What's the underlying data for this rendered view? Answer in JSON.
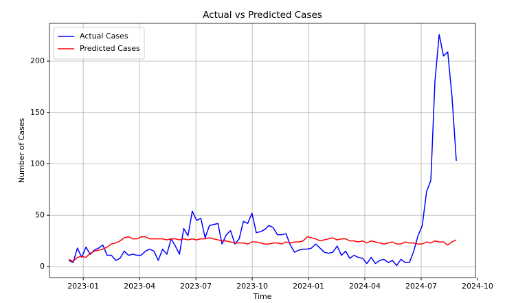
{
  "chart_data": {
    "type": "line",
    "title": "Actual vs Predicted Cases",
    "xlabel": "Time",
    "ylabel": "Number of Cases",
    "x": [
      2022.936,
      2022.955,
      2022.974,
      2022.993,
      2023.012,
      2023.031,
      2023.049,
      2023.068,
      2023.087,
      2023.106,
      2023.125,
      2023.144,
      2023.163,
      2023.182,
      2023.201,
      2023.22,
      2023.238,
      2023.257,
      2023.276,
      2023.295,
      2023.314,
      2023.333,
      2023.352,
      2023.371,
      2023.39,
      2023.409,
      2023.427,
      2023.446,
      2023.465,
      2023.484,
      2023.503,
      2023.522,
      2023.541,
      2023.56,
      2023.579,
      2023.598,
      2023.616,
      2023.635,
      2023.654,
      2023.673,
      2023.692,
      2023.711,
      2023.73,
      2023.749,
      2023.768,
      2023.787,
      2023.805,
      2023.824,
      2023.843,
      2023.862,
      2023.881,
      2023.9,
      2023.919,
      2023.938,
      2023.957,
      2023.976,
      2023.994,
      2024.013,
      2024.032,
      2024.051,
      2024.07,
      2024.089,
      2024.108,
      2024.127,
      2024.146,
      2024.165,
      2024.183,
      2024.202,
      2024.221,
      2024.24,
      2024.259,
      2024.278,
      2024.297,
      2024.316,
      2024.335,
      2024.354,
      2024.372,
      2024.391,
      2024.41,
      2024.429,
      2024.448,
      2024.467,
      2024.486,
      2024.505,
      2024.524,
      2024.543,
      2024.561,
      2024.58,
      2024.599,
      2024.618,
      2024.637,
      2024.656
    ],
    "series": [
      {
        "name": "Actual Cases",
        "color": "#0000ff",
        "values": [
          6,
          4,
          18,
          9,
          19,
          12,
          16,
          18,
          21,
          11,
          11,
          6,
          8,
          15,
          11,
          12,
          11,
          11,
          15,
          17,
          15,
          6,
          17,
          12,
          27,
          20,
          12,
          37,
          30,
          54,
          45,
          47,
          28,
          40,
          41,
          42,
          22,
          31,
          35,
          22,
          27,
          44,
          42,
          52,
          33,
          34,
          36,
          40,
          38,
          31,
          31,
          32,
          21,
          14,
          16,
          17,
          17,
          18,
          22,
          18,
          14,
          13,
          14,
          20,
          11,
          15,
          8,
          11,
          9,
          8,
          3,
          9,
          3,
          6,
          7,
          4,
          6,
          1,
          7,
          4,
          4,
          15,
          30,
          40,
          73,
          84,
          180,
          226,
          205,
          209,
          165,
          103
        ]
      },
      {
        "name": "Predicted Cases",
        "color": "#ff0000",
        "values": [
          7,
          5,
          9,
          10,
          9,
          13,
          15,
          16,
          17,
          19,
          22,
          23,
          25,
          28,
          29,
          27,
          27,
          29,
          29,
          27,
          27,
          27,
          27,
          26,
          27,
          27,
          26,
          27,
          26,
          27,
          26,
          27,
          27,
          28,
          27,
          26,
          25,
          25,
          24,
          23,
          23,
          23,
          22,
          24,
          24,
          23,
          22,
          22,
          23,
          23,
          22,
          24,
          23,
          24,
          24,
          25,
          29,
          28,
          27,
          25,
          26,
          27,
          28,
          26,
          27,
          27,
          25,
          25,
          24,
          25,
          23,
          25,
          24,
          23,
          22,
          23,
          24,
          22,
          22,
          24,
          23,
          23,
          22,
          22,
          24,
          23,
          25,
          24,
          24,
          21,
          24,
          26
        ]
      }
    ],
    "xlim": [
      2022.85,
      2024.741
    ],
    "ylim": [
      -10.7,
      236.8
    ],
    "xticks": [
      {
        "value": 2023.0,
        "label": "2023-01"
      },
      {
        "value": 2023.25,
        "label": "2023-04"
      },
      {
        "value": 2023.5,
        "label": "2023-07"
      },
      {
        "value": 2023.75,
        "label": "2023-10"
      },
      {
        "value": 2024.0,
        "label": "2024-01"
      },
      {
        "value": 2024.25,
        "label": "2024-04"
      },
      {
        "value": 2024.5,
        "label": "2024-07"
      },
      {
        "value": 2024.75,
        "label": "2024-10"
      }
    ],
    "yticks": [
      0,
      50,
      100,
      150,
      200
    ],
    "grid": true,
    "legend": "upper left"
  }
}
